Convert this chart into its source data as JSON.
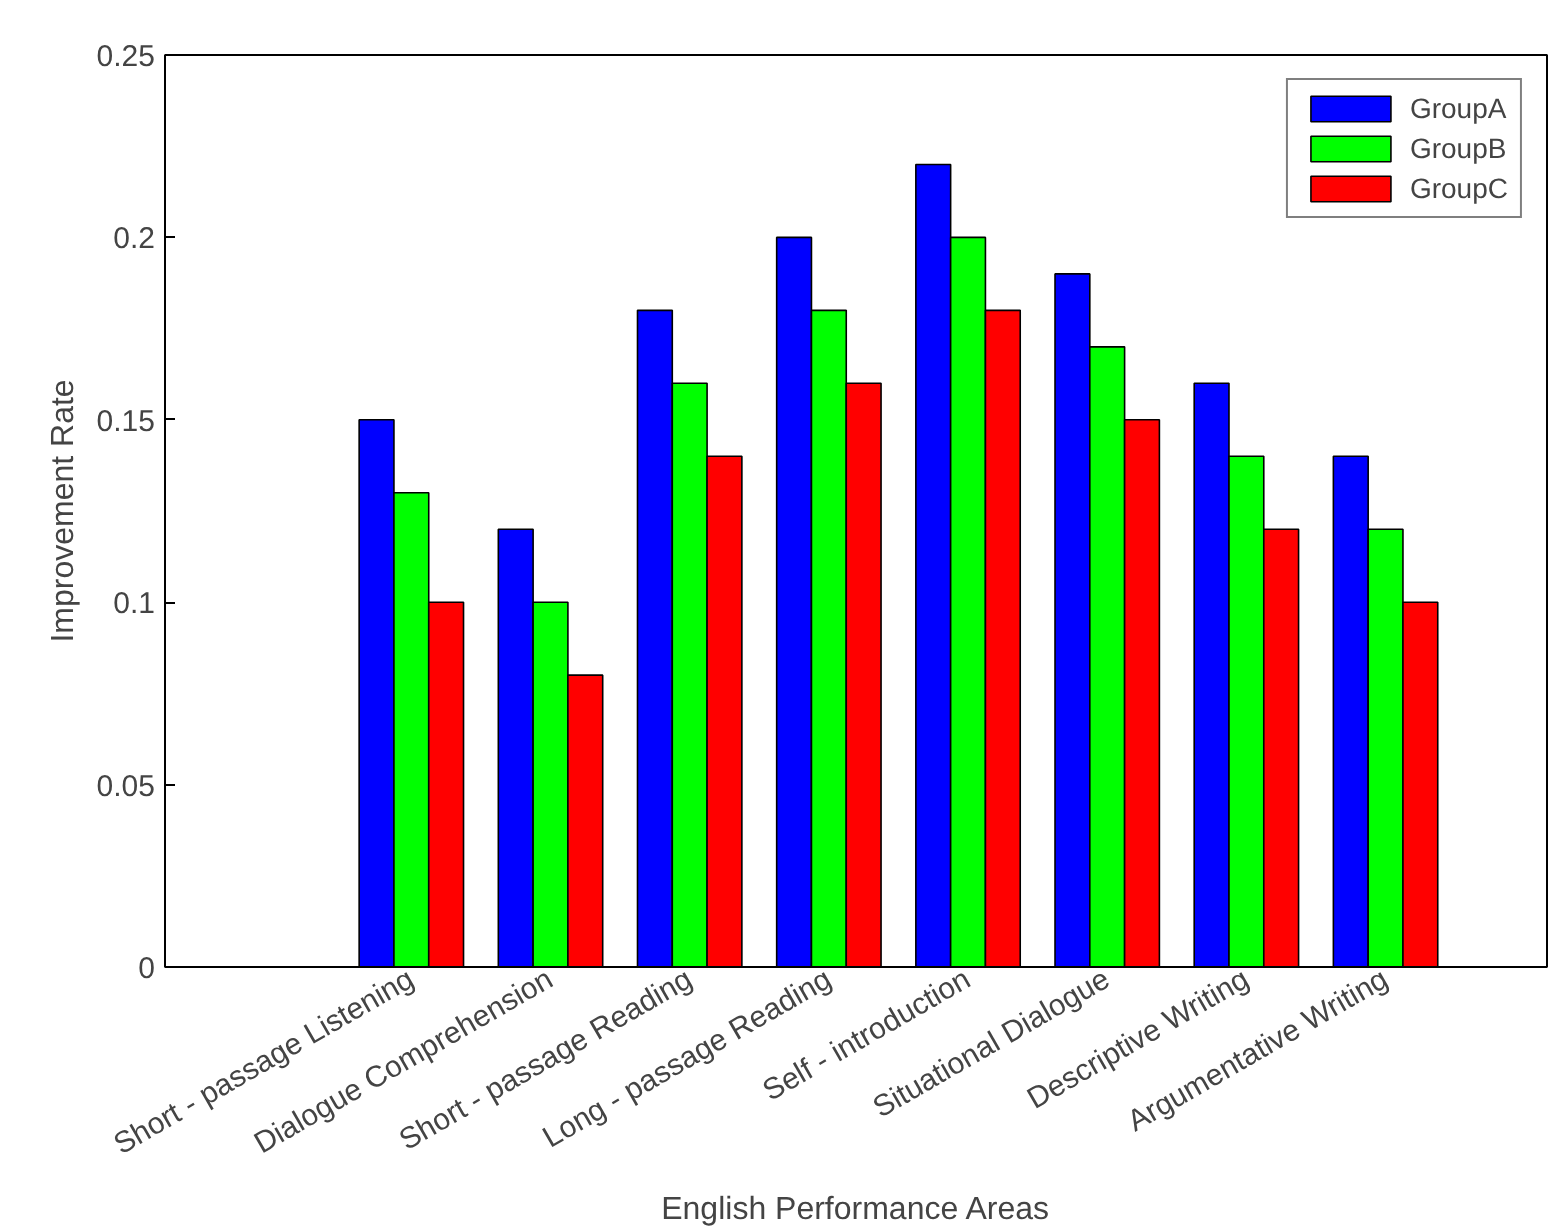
{
  "chart_data": {
    "type": "bar",
    "xlabel": "English Performance Areas",
    "ylabel": "Improvement Rate",
    "categories": [
      "Short - passage Listening",
      "Dialogue Comprehension",
      "Short - passage Reading",
      "Long - passage Reading",
      "Self - introduction",
      "Situational Dialogue",
      "Descriptive Writing",
      "Argumentative Writing"
    ],
    "series": [
      {
        "name": "GroupA",
        "color": "#0000ff",
        "values": [
          0.15,
          0.12,
          0.18,
          0.2,
          0.22,
          0.19,
          0.16,
          0.14
        ]
      },
      {
        "name": "GroupB",
        "color": "#00ff00",
        "values": [
          0.13,
          0.1,
          0.16,
          0.18,
          0.2,
          0.17,
          0.14,
          0.12
        ]
      },
      {
        "name": "GroupC",
        "color": "#ff0000",
        "values": [
          0.1,
          0.08,
          0.14,
          0.16,
          0.18,
          0.15,
          0.12,
          0.1
        ]
      }
    ],
    "ylim": [
      0,
      0.25
    ],
    "yticks": [
      0,
      0.05,
      0.1,
      0.15,
      0.2,
      0.25
    ],
    "grid": false,
    "legend": "top right"
  }
}
